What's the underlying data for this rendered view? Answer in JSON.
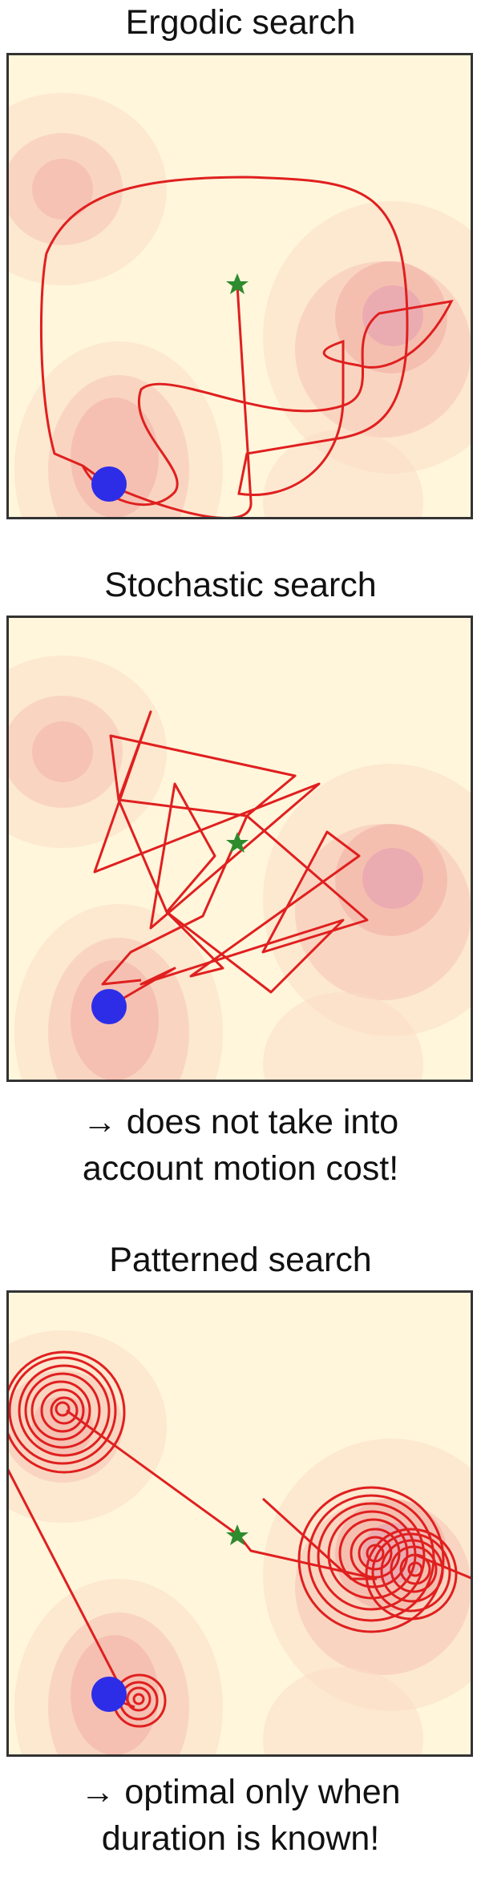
{
  "panels": [
    {
      "title": "Ergodic search",
      "note": []
    },
    {
      "title": "Stochastic search",
      "note": [
        "→ does not take into",
        "account motion cost!"
      ]
    },
    {
      "title": "Patterned search",
      "note": [
        "→ optimal only when",
        "duration is known!"
      ]
    }
  ],
  "colors": {
    "background": "#fff6dc",
    "density": "#f4a7a0",
    "path": "#e01f1f",
    "start_marker": "#2d2de8",
    "center_marker": "#2e8b2e"
  }
}
